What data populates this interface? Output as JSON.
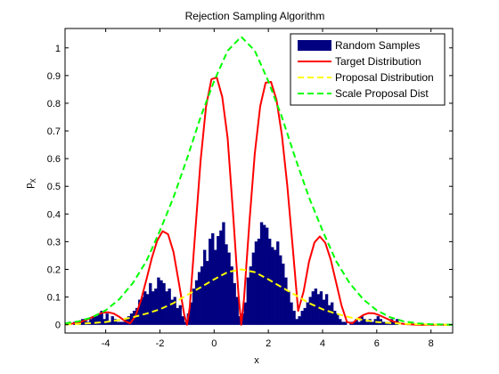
{
  "chart_data": {
    "type": "bar",
    "title": "Rejection Sampling Algorithm",
    "xlabel": "x",
    "ylabel": "p",
    "ylabel_sub": "X",
    "xlim": [
      -5.5,
      8.8
    ],
    "ylim": [
      -0.03,
      1.07
    ],
    "xticks": [
      -4,
      -2,
      0,
      2,
      4,
      6,
      8
    ],
    "yticks": [
      0,
      0.1,
      0.2,
      0.3,
      0.4,
      0.5,
      0.6,
      0.7,
      0.8,
      0.9,
      1
    ],
    "grid": false,
    "legend_position": "top-right",
    "colors": {
      "samples": "#000080",
      "target": "#ff0000",
      "proposal": "#ffff00",
      "scaled": "#00ff00"
    },
    "legend": [
      "Random Samples",
      "Target Distribution",
      "Proposal Distribution",
      "Scale Proposal Dist"
    ],
    "histogram": {
      "name": "Random Samples",
      "bin_width": 0.1,
      "centers": [
        -5.35,
        -5.25,
        -5.15,
        -5.05,
        -4.95,
        -4.85,
        -4.75,
        -4.65,
        -4.55,
        -4.45,
        -4.35,
        -4.25,
        -4.15,
        -4.05,
        -3.95,
        -3.85,
        -3.75,
        -3.65,
        -3.55,
        -3.45,
        -3.35,
        -3.25,
        -3.15,
        -3.05,
        -2.95,
        -2.85,
        -2.75,
        -2.65,
        -2.55,
        -2.45,
        -2.35,
        -2.25,
        -2.15,
        -2.05,
        -1.95,
        -1.85,
        -1.75,
        -1.65,
        -1.55,
        -1.45,
        -1.35,
        -1.25,
        -1.15,
        -1.05,
        -0.95,
        -0.85,
        -0.75,
        -0.65,
        -0.55,
        -0.45,
        -0.35,
        -0.25,
        -0.15,
        -0.05,
        0.05,
        0.15,
        0.25,
        0.35,
        0.45,
        0.55,
        0.65,
        0.75,
        0.85,
        0.95,
        1.05,
        1.15,
        1.25,
        1.35,
        1.45,
        1.55,
        1.65,
        1.75,
        1.85,
        1.95,
        2.05,
        2.15,
        2.25,
        2.35,
        2.45,
        2.55,
        2.65,
        2.75,
        2.85,
        2.95,
        3.05,
        3.15,
        3.25,
        3.35,
        3.45,
        3.55,
        3.65,
        3.75,
        3.85,
        3.95,
        4.05,
        4.15,
        4.25,
        4.35,
        4.45,
        4.55,
        4.65,
        4.75,
        4.85,
        4.95,
        5.05,
        5.15,
        5.25,
        5.35,
        5.45,
        5.55,
        5.65,
        5.75,
        5.85,
        5.95,
        6.05,
        6.15,
        6.25,
        6.35,
        6.45,
        6.55,
        6.65,
        6.75
      ],
      "values": [
        0.01,
        0,
        0.01,
        0,
        0.01,
        0.02,
        0.02,
        0.01,
        0.02,
        0.03,
        0.03,
        0.04,
        0.05,
        0.02,
        0.04,
        0.01,
        0.03,
        0.02,
        0.01,
        0.01,
        0.01,
        0.02,
        0.03,
        0.04,
        0.05,
        0.06,
        0.09,
        0.1,
        0.12,
        0.11,
        0.15,
        0.12,
        0.13,
        0.17,
        0.16,
        0.15,
        0.12,
        0.13,
        0.09,
        0.1,
        0.06,
        0.07,
        0.03,
        0.01,
        0.04,
        0.08,
        0.13,
        0.16,
        0.19,
        0.21,
        0.27,
        0.23,
        0.31,
        0.33,
        0.27,
        0.32,
        0.34,
        0.37,
        0.29,
        0.26,
        0.21,
        0.15,
        0.1,
        0.03,
        0.04,
        0.08,
        0.17,
        0.21,
        0.26,
        0.3,
        0.31,
        0.37,
        0.36,
        0.35,
        0.31,
        0.28,
        0.27,
        0.3,
        0.25,
        0.22,
        0.17,
        0.12,
        0.08,
        0.05,
        0.02,
        0.03,
        0.05,
        0.06,
        0.08,
        0.1,
        0.12,
        0.13,
        0.11,
        0.12,
        0.09,
        0.11,
        0.07,
        0.08,
        0.05,
        0.04,
        0.02,
        0.01,
        0.01,
        0,
        0.01,
        0.01,
        0.02,
        0.01,
        0.03,
        0.02,
        0.01,
        0.02,
        0.01,
        0.02,
        0.03,
        0.02,
        0.01,
        0.01,
        0.01,
        0.02,
        0.01,
        0.02,
        0,
        0.01
      ],
      "hist_color": "#000080"
    },
    "series": [
      {
        "name": "Target Distribution",
        "x": [
          -5.5,
          -5.3,
          -5.1,
          -4.9,
          -4.7,
          -4.5,
          -4.3,
          -4.1,
          -3.9,
          -3.7,
          -3.5,
          -3.3,
          -3.1,
          -2.9,
          -2.7,
          -2.5,
          -2.3,
          -2.1,
          -1.9,
          -1.7,
          -1.5,
          -1.3,
          -1.1,
          -1.0,
          -0.9,
          -0.7,
          -0.5,
          -0.3,
          -0.1,
          0.1,
          0.3,
          0.5,
          0.7,
          0.9,
          1.0,
          1.1,
          1.3,
          1.5,
          1.7,
          1.9,
          2.1,
          2.3,
          2.5,
          2.7,
          2.9,
          3.1,
          3.3,
          3.5,
          3.7,
          3.9,
          4.1,
          4.3,
          4.5,
          4.7,
          4.9,
          5.1,
          5.3,
          5.5,
          5.7,
          5.9,
          6.1,
          6.3,
          6.5,
          6.7,
          6.9,
          7.1,
          7.3,
          7.5,
          7.7,
          7.9,
          8.1,
          8.3,
          8.5,
          8.7
        ],
        "y": [
          0.001,
          0.003,
          0.006,
          0.011,
          0.018,
          0.027,
          0.037,
          0.044,
          0.045,
          0.04,
          0.029,
          0.014,
          0.005,
          0.032,
          0.088,
          0.163,
          0.24,
          0.304,
          0.338,
          0.327,
          0.263,
          0.15,
          0.035,
          0.0,
          0.062,
          0.33,
          0.592,
          0.788,
          0.887,
          0.893,
          0.823,
          0.673,
          0.4,
          0.107,
          0.0,
          0.092,
          0.37,
          0.617,
          0.789,
          0.874,
          0.877,
          0.812,
          0.684,
          0.503,
          0.28,
          0.05,
          0.12,
          0.228,
          0.297,
          0.319,
          0.296,
          0.236,
          0.153,
          0.069,
          0.01,
          0.005,
          0.022,
          0.035,
          0.042,
          0.041,
          0.034,
          0.025,
          0.016,
          0.009,
          0.004,
          0.002,
          0.001,
          0.0,
          0.0,
          0.0,
          0.0,
          0.0,
          0.0,
          0.0
        ]
      },
      {
        "name": "Proposal Distribution",
        "x": [
          -5.5,
          -5.0,
          -4.5,
          -4.0,
          -3.5,
          -3.0,
          -2.5,
          -2.0,
          -1.5,
          -1.0,
          -0.5,
          0.0,
          0.5,
          1.0,
          1.5,
          2.0,
          2.5,
          3.0,
          3.5,
          4.0,
          4.5,
          5.0,
          5.5,
          6.0,
          6.5,
          7.0,
          7.5,
          8.0,
          8.5,
          8.8
        ],
        "y": [
          0.001,
          0.003,
          0.006,
          0.01,
          0.017,
          0.027,
          0.04,
          0.056,
          0.078,
          0.107,
          0.135,
          0.164,
          0.19,
          0.2,
          0.19,
          0.164,
          0.135,
          0.107,
          0.078,
          0.056,
          0.04,
          0.027,
          0.017,
          0.01,
          0.006,
          0.003,
          0.002,
          0.001,
          0.0,
          0.0
        ]
      },
      {
        "name": "Scale Proposal Dist",
        "x": [
          -5.5,
          -5.0,
          -4.5,
          -4.0,
          -3.5,
          -3.0,
          -2.5,
          -2.0,
          -1.5,
          -1.0,
          -0.5,
          0.0,
          0.5,
          1.0,
          1.5,
          2.0,
          2.5,
          3.0,
          3.5,
          4.0,
          4.5,
          5.0,
          5.5,
          6.0,
          6.5,
          7.0,
          7.5,
          8.0,
          8.5,
          8.8
        ],
        "y": [
          0.005,
          0.012,
          0.027,
          0.052,
          0.092,
          0.15,
          0.23,
          0.34,
          0.46,
          0.6,
          0.75,
          0.88,
          0.99,
          1.04,
          0.99,
          0.88,
          0.75,
          0.6,
          0.46,
          0.34,
          0.23,
          0.15,
          0.092,
          0.052,
          0.027,
          0.012,
          0.005,
          0.002,
          0.001,
          0.0
        ]
      }
    ]
  }
}
